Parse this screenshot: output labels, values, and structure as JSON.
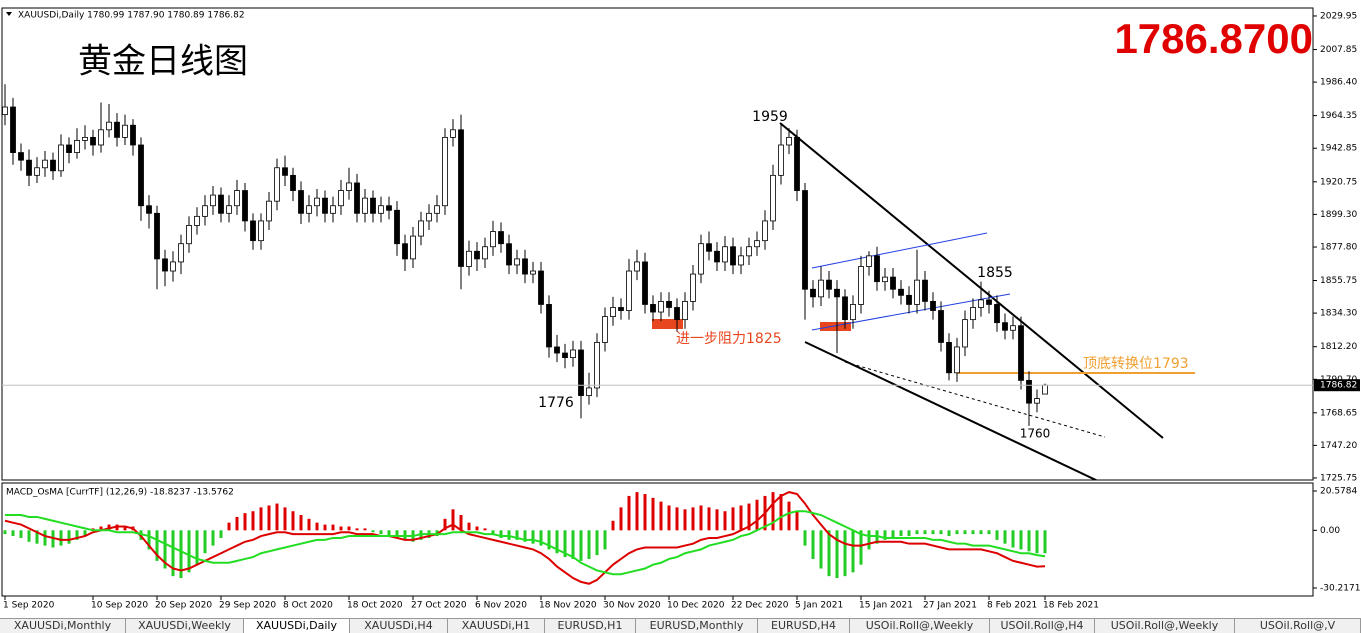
{
  "title": "黄金日线图",
  "price_display": "1786.8700",
  "tabs": [
    "XAUUSDi,Monthly",
    "XAUUSDi,Weekly",
    "XAUUSDi,Daily",
    "XAUUSDi,H4",
    "XAUUSDi,H1",
    "EURUSD,H1",
    "EURUSD,Monthly",
    "EURUSD,H4",
    "USOil.Roll@,Weekly",
    "USOil.Roll@,H4",
    "USOil.Roll@,Weekly",
    "USOil.Roll@,V"
  ],
  "chart_data": [
    {
      "type": "candlestick",
      "header": "XAUUSDi,Daily  1780.99 1787.90 1780.89 1786.82",
      "categories": [
        "1 Sep 2020",
        null,
        null,
        null,
        null,
        null,
        null,
        null,
        null,
        null,
        null,
        "10 Sep 2020",
        null,
        null,
        null,
        null,
        null,
        null,
        null,
        "20 Sep 2020",
        null,
        null,
        null,
        null,
        null,
        null,
        null,
        "29 Sep 2020",
        null,
        null,
        null,
        null,
        null,
        null,
        null,
        "8 Oct 2020",
        null,
        null,
        null,
        null,
        null,
        null,
        null,
        "18 Oct 2020",
        null,
        null,
        null,
        null,
        null,
        null,
        null,
        "27 Oct 2020",
        null,
        null,
        null,
        null,
        null,
        null,
        null,
        "6 Nov 2020",
        null,
        null,
        null,
        null,
        null,
        null,
        null,
        "18 Nov 2020",
        null,
        null,
        null,
        null,
        null,
        null,
        null,
        "30 Nov 2020",
        null,
        null,
        null,
        null,
        null,
        null,
        null,
        "10 Dec 2020",
        null,
        null,
        null,
        null,
        null,
        null,
        null,
        "22 Dec 2020",
        null,
        null,
        null,
        null,
        null,
        null,
        null,
        "5 Jan 2021",
        null,
        null,
        null,
        null,
        null,
        null,
        null,
        "15 Jan 2021",
        null,
        null,
        null,
        null,
        null,
        null,
        null,
        "27 Jan 2021",
        null,
        null,
        null,
        null,
        null,
        null,
        null,
        "8 Feb 2021",
        null,
        null,
        null,
        null,
        null,
        null,
        "18 Feb 2021"
      ],
      "open": [
        1965,
        1970,
        1940,
        1935,
        1925,
        1930,
        1935,
        1928,
        1945,
        1940,
        1948,
        1950,
        1945,
        1955,
        1960,
        1950,
        1958,
        1945,
        1905,
        1900,
        1870,
        1862,
        1868,
        1880,
        1892,
        1898,
        1905,
        1912,
        1900,
        1905,
        1915,
        1895,
        1882,
        1895,
        1908,
        1930,
        1925,
        1915,
        1900,
        1905,
        1910,
        1900,
        1905,
        1915,
        1920,
        1900,
        1910,
        1900,
        1905,
        1902,
        1880,
        1870,
        1885,
        1895,
        1900,
        1905,
        1950,
        1955,
        1865,
        1875,
        1870,
        1878,
        1888,
        1880,
        1866,
        1870,
        1860,
        1862,
        1840,
        1812,
        1808,
        1805,
        1810,
        1780,
        1785,
        1815,
        1832,
        1838,
        1836,
        1862,
        1868,
        1840,
        1835,
        1842,
        1838,
        1830,
        1842,
        1860,
        1880,
        1875,
        1868,
        1878,
        1866,
        1872,
        1878,
        1882,
        1895,
        1925,
        1945,
        1950,
        1915,
        1850,
        1845,
        1856,
        1850,
        1845,
        1830,
        1840,
        1865,
        1872,
        1855,
        1858,
        1850,
        1846,
        1840,
        1856,
        1842,
        1836,
        1815,
        1795,
        1812,
        1830,
        1838,
        1843,
        1840,
        1828,
        1823,
        1826,
        1790,
        1775,
        1780.99
      ],
      "high": [
        1985,
        1976,
        1946,
        1942,
        1937,
        1941,
        1940,
        1952,
        1950,
        1956,
        1958,
        1955,
        1973,
        1972,
        1966,
        1965,
        1962,
        1950,
        1912,
        1905,
        1876,
        1875,
        1886,
        1898,
        1904,
        1912,
        1918,
        1917,
        1912,
        1922,
        1920,
        1900,
        1900,
        1914,
        1936,
        1938,
        1930,
        1921,
        1912,
        1916,
        1915,
        1911,
        1922,
        1930,
        1926,
        1916,
        1915,
        1911,
        1911,
        1908,
        1886,
        1891,
        1901,
        1906,
        1912,
        1956,
        1962,
        1965,
        1882,
        1881,
        1884,
        1895,
        1894,
        1886,
        1876,
        1876,
        1868,
        1868,
        1846,
        1820,
        1814,
        1816,
        1816,
        1795,
        1821,
        1838,
        1845,
        1844,
        1870,
        1876,
        1874,
        1846,
        1848,
        1848,
        1844,
        1848,
        1866,
        1886,
        1888,
        1881,
        1885,
        1884,
        1878,
        1884,
        1888,
        1902,
        1932,
        1959,
        1956,
        1955,
        1920,
        1856,
        1865,
        1862,
        1856,
        1850,
        1846,
        1872,
        1875,
        1878,
        1864,
        1864,
        1856,
        1852,
        1876,
        1862,
        1848,
        1842,
        1821,
        1818,
        1836,
        1844,
        1855,
        1849,
        1846,
        1834,
        1832,
        1832,
        1796,
        1784,
        1787.9
      ],
      "low": [
        1958,
        1932,
        1928,
        1918,
        1920,
        1924,
        1922,
        1924,
        1933,
        1936,
        1942,
        1938,
        1940,
        1950,
        1944,
        1945,
        1938,
        1895,
        1890,
        1850,
        1852,
        1855,
        1860,
        1874,
        1886,
        1892,
        1899,
        1894,
        1894,
        1899,
        1888,
        1876,
        1876,
        1889,
        1902,
        1918,
        1908,
        1893,
        1894,
        1898,
        1894,
        1894,
        1899,
        1909,
        1894,
        1894,
        1894,
        1894,
        1896,
        1872,
        1862,
        1864,
        1879,
        1889,
        1894,
        1899,
        1944,
        1850,
        1859,
        1862,
        1864,
        1872,
        1874,
        1860,
        1860,
        1854,
        1854,
        1834,
        1805,
        1802,
        1798,
        1799,
        1765,
        1774,
        1779,
        1809,
        1826,
        1830,
        1830,
        1856,
        1834,
        1829,
        1829,
        1832,
        1822,
        1824,
        1836,
        1854,
        1869,
        1862,
        1862,
        1860,
        1860,
        1866,
        1872,
        1876,
        1889,
        1919,
        1939,
        1908,
        1830,
        1838,
        1839,
        1844,
        1808,
        1824,
        1824,
        1834,
        1859,
        1849,
        1849,
        1844,
        1840,
        1834,
        1834,
        1836,
        1830,
        1809,
        1790,
        1789,
        1806,
        1824,
        1832,
        1834,
        1822,
        1817,
        1817,
        1784,
        1760,
        1769,
        1780.89
      ],
      "close": [
        1970,
        1940,
        1935,
        1925,
        1930,
        1935,
        1928,
        1945,
        1940,
        1948,
        1950,
        1945,
        1955,
        1960,
        1950,
        1958,
        1945,
        1905,
        1900,
        1870,
        1862,
        1868,
        1880,
        1892,
        1898,
        1905,
        1912,
        1900,
        1905,
        1915,
        1895,
        1882,
        1895,
        1908,
        1930,
        1925,
        1915,
        1900,
        1905,
        1910,
        1900,
        1905,
        1915,
        1920,
        1900,
        1910,
        1900,
        1905,
        1902,
        1880,
        1870,
        1885,
        1895,
        1900,
        1905,
        1950,
        1955,
        1865,
        1875,
        1870,
        1878,
        1888,
        1880,
        1866,
        1870,
        1860,
        1862,
        1840,
        1812,
        1808,
        1805,
        1810,
        1780,
        1785,
        1815,
        1832,
        1838,
        1836,
        1862,
        1868,
        1840,
        1835,
        1842,
        1838,
        1830,
        1842,
        1860,
        1880,
        1875,
        1868,
        1878,
        1866,
        1872,
        1878,
        1882,
        1895,
        1925,
        1945,
        1950,
        1915,
        1850,
        1845,
        1856,
        1850,
        1845,
        1830,
        1840,
        1865,
        1872,
        1855,
        1858,
        1850,
        1846,
        1840,
        1856,
        1842,
        1836,
        1815,
        1795,
        1812,
        1830,
        1838,
        1843,
        1840,
        1828,
        1823,
        1826,
        1790,
        1775,
        1778,
        1786.82
      ],
      "up_color": "#ffffff",
      "down_color": "#000000",
      "ylim": [
        1724.4,
        2035.2
      ],
      "yticks": [
        2029.95,
        2007.85,
        {
          "value": 1986.4,
          "label": "1986.40"
        },
        1964.35,
        1942.85,
        1920.75,
        {
          "value": 1899.3,
          "label": "1899.30"
        },
        {
          "value": 1877.8,
          "label": "1877.80"
        },
        1855.75,
        {
          "value": 1834.3,
          "label": "1834.30"
        },
        {
          "value": 1812.2,
          "label": "1812.20"
        },
        {
          "value": 1790.7,
          "label": "1790.70"
        },
        1768.65,
        {
          "value": 1747.2,
          "label": "1747.20"
        },
        1725.75
      ],
      "current_price": 1786.82,
      "annotations": [
        "1959",
        "1776",
        "1855",
        "1760",
        "进一步阻力1825",
        "顶底转换位1793"
      ],
      "grid": false
    },
    {
      "type": "macd",
      "header": "MACD_OsMA [CurrTF] (12,26,9) -18.8237 -13.5762",
      "values": [
        -2,
        -3,
        -4,
        -6,
        -7,
        -8,
        -9,
        -8,
        -7,
        -5,
        -3,
        1,
        2,
        3,
        3,
        2,
        2,
        -5,
        -10,
        -16,
        -20,
        -24,
        -25,
        -22,
        -18,
        -12,
        -8,
        -4,
        4,
        7,
        9,
        10,
        12,
        13,
        14,
        12,
        10,
        8,
        6,
        4,
        3,
        3,
        2,
        2,
        1,
        1,
        -1,
        -2,
        -3,
        -4,
        -5,
        -6,
        -5,
        -4,
        -3,
        6,
        11,
        8,
        4,
        2,
        1,
        -2,
        -4,
        -5,
        -5,
        -6,
        -7,
        -8,
        -10,
        -12,
        -14,
        -15,
        -16,
        -15,
        -13,
        -10,
        5,
        12,
        18,
        20,
        19,
        17,
        15,
        13,
        12,
        11,
        12,
        13,
        12,
        11,
        10,
        12,
        13,
        14,
        16,
        18,
        20,
        19,
        15,
        10,
        -8,
        -15,
        -20,
        -24,
        -25,
        -24,
        -22,
        -18,
        -10,
        -7,
        -5,
        -4,
        -3,
        -3,
        -2,
        -2,
        -2,
        -2,
        -3,
        -2,
        -2,
        -2,
        -2,
        -2,
        -5,
        -7,
        -9,
        -10,
        -11,
        -12,
        -12
      ],
      "up_color": "#dd0000",
      "down_color": "#22cc22",
      "series": [
        {
          "color": "#dd0000",
          "values": [
            5,
            4,
            3,
            1,
            -1,
            -3,
            -4,
            -5,
            -5,
            -4,
            -3,
            -1,
            0,
            1,
            2,
            2,
            1,
            -3,
            -8,
            -13,
            -17,
            -20,
            -21,
            -20,
            -18,
            -16,
            -14,
            -12,
            -10,
            -8,
            -6,
            -5,
            -3,
            -2,
            -1,
            -1,
            -2,
            -2,
            -2,
            -2,
            -2,
            -2,
            -1,
            -1,
            -2,
            -2,
            -2,
            -3,
            -3,
            -4,
            -5,
            -5,
            -4,
            -3,
            -2,
            1,
            3,
            0,
            -2,
            -3,
            -4,
            -5,
            -6,
            -7,
            -8,
            -9,
            -10,
            -12,
            -15,
            -19,
            -22,
            -25,
            -27,
            -28,
            -26,
            -22,
            -18,
            -15,
            -12,
            -10,
            -9,
            -9,
            -9,
            -9,
            -9,
            -8,
            -7,
            -5,
            -4,
            -4,
            -3,
            -2,
            0,
            2,
            5,
            9,
            14,
            18,
            20,
            19,
            14,
            8,
            3,
            -2,
            -5,
            -7,
            -8,
            -8,
            -7,
            -6,
            -6,
            -6,
            -6,
            -7,
            -7,
            -7,
            -8,
            -9,
            -10,
            -10,
            -10,
            -10,
            -10,
            -11,
            -12,
            -14,
            -16,
            -17,
            -18,
            -19,
            -18.8
          ]
        },
        {
          "color": "#22dd22",
          "values": [
            8,
            8,
            8,
            7,
            7,
            6,
            5,
            4,
            3,
            2,
            1,
            0,
            0,
            0,
            -1,
            -1,
            -1,
            -2,
            -3,
            -5,
            -7,
            -9,
            -11,
            -13,
            -15,
            -16,
            -17,
            -17,
            -17,
            -16,
            -15,
            -14,
            -12,
            -11,
            -10,
            -9,
            -8,
            -7,
            -6,
            -5,
            -5,
            -4,
            -4,
            -3,
            -3,
            -3,
            -3,
            -3,
            -3,
            -3,
            -3,
            -3,
            -2,
            -2,
            -2,
            -2,
            -1,
            -1,
            -1,
            -1,
            -2,
            -2,
            -3,
            -3,
            -4,
            -5,
            -5,
            -6,
            -8,
            -10,
            -12,
            -14,
            -17,
            -19,
            -21,
            -22,
            -23,
            -23,
            -22,
            -21,
            -20,
            -18,
            -17,
            -15,
            -14,
            -12,
            -11,
            -10,
            -8,
            -7,
            -6,
            -5,
            -3,
            -2,
            0,
            2,
            4,
            7,
            9,
            10,
            10,
            9,
            8,
            6,
            4,
            2,
            0,
            -2,
            -3,
            -3,
            -4,
            -4,
            -4,
            -4,
            -4,
            -4,
            -5,
            -5,
            -6,
            -7,
            -7,
            -8,
            -8,
            -8,
            -9,
            -10,
            -11,
            -12,
            -12,
            -13,
            -13.6
          ]
        }
      ],
      "ylim": [
        -34.4,
        24.25
      ],
      "yticks": [
        20.5784,
        {
          "value": 0,
          "label": "0.00"
        },
        -30.2171
      ]
    }
  ]
}
